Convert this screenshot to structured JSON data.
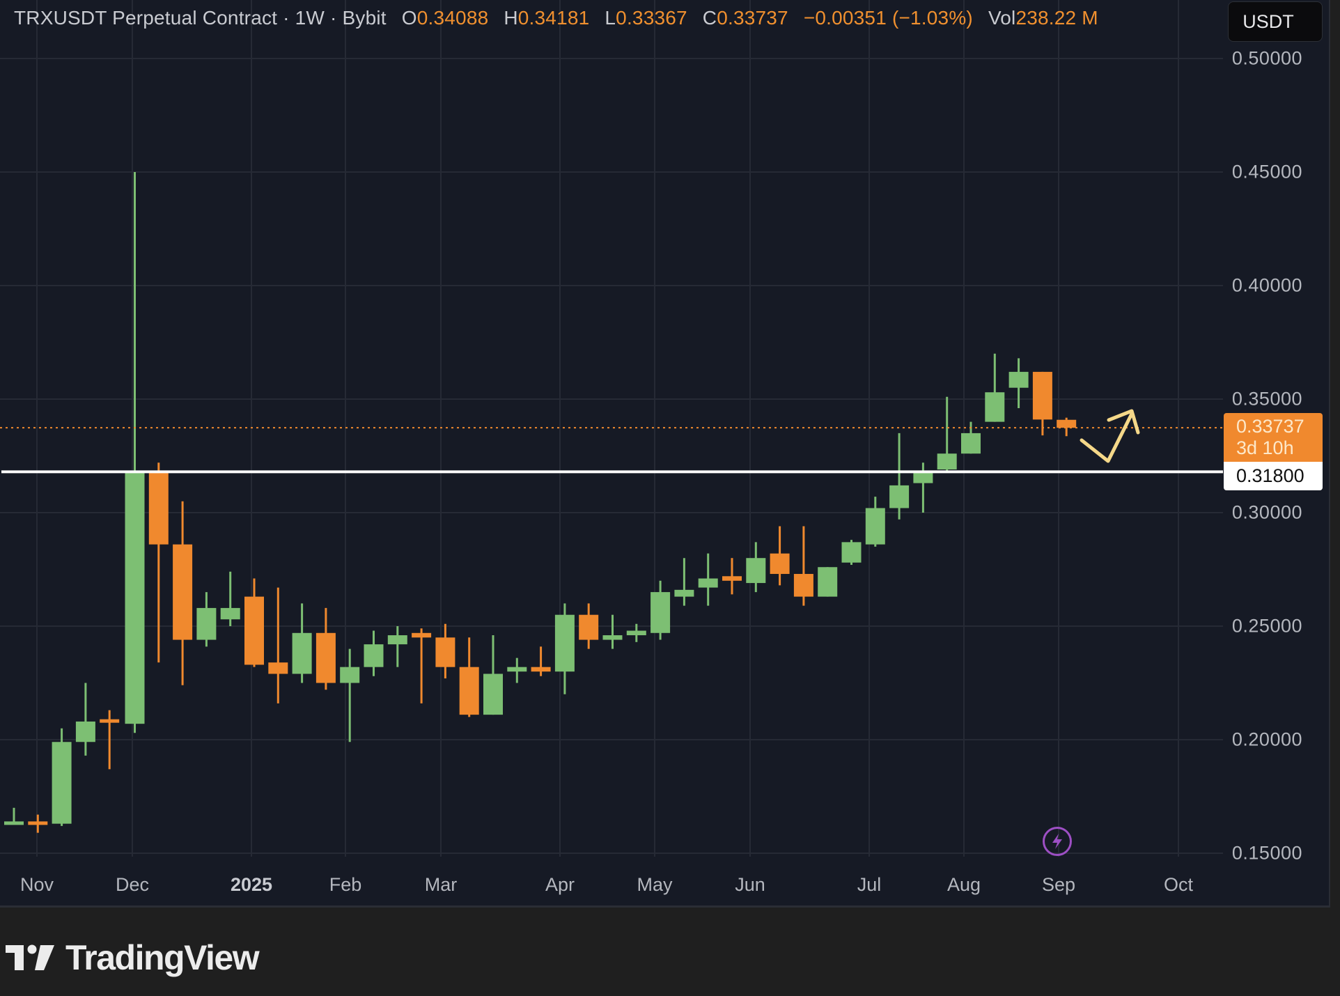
{
  "header": {
    "symbol": "TRXUSDT Perpetual Contract · 1W · Bybit",
    "open_label": "O",
    "open": "0.34088",
    "high_label": "H",
    "high": "0.34181",
    "low_label": "L",
    "low": "0.33367",
    "close_label": "C",
    "close": "0.33737",
    "change": "−0.00351 (−1.03%)",
    "vol_label": "Vol",
    "volume": "238.22 M"
  },
  "currency_button": "USDT",
  "price_axis": {
    "ticks": [
      "0.50000",
      "0.45000",
      "0.40000",
      "0.35000",
      "0.30000",
      "0.25000",
      "0.20000",
      "0.15000"
    ],
    "last_price": "0.33737",
    "countdown": "3d 10h",
    "level_price": "0.31800"
  },
  "time_axis": {
    "ticks": [
      "Nov",
      "Dec",
      "2025",
      "Feb",
      "Mar",
      "Apr",
      "May",
      "Jun",
      "Jul",
      "Aug",
      "Sep",
      "Oct"
    ]
  },
  "branding": "TradingView",
  "icons": {
    "flash": "lightning-bolt-icon",
    "logo": "tradingview-logo-icon"
  },
  "colors": {
    "up": "#7dbf73",
    "down": "#f0892e",
    "background": "#161a25",
    "grid": "#262a35",
    "level_line": "#ffffff",
    "arrow": "#f5d889"
  },
  "chart_data": {
    "type": "candlestick",
    "title": "TRXUSDT Perpetual Contract · 1W · Bybit",
    "xlabel": "",
    "ylabel": "USDT",
    "ylim": [
      0.15,
      0.5
    ],
    "grid": true,
    "x_tick_labels": [
      "Nov",
      "Dec",
      "2025",
      "Feb",
      "Mar",
      "Apr",
      "May",
      "Jun",
      "Jul",
      "Aug",
      "Sep",
      "Oct"
    ],
    "y_tick_labels": [
      "0.50000",
      "0.45000",
      "0.40000",
      "0.35000",
      "0.30000",
      "0.25000",
      "0.20000",
      "0.15000"
    ],
    "horizontal_line": {
      "value": 0.318,
      "label": "0.31800",
      "color": "#ffffff"
    },
    "last_price_line": {
      "value": 0.33737,
      "style": "dotted",
      "color": "#f0892e"
    },
    "annotation": "hand-drawn yellow check-mark arrow pointing up to the right of the last candle",
    "candles": [
      {
        "o": 0.163,
        "h": 0.17,
        "l": 0.163,
        "c": 0.164
      },
      {
        "o": 0.164,
        "h": 0.167,
        "l": 0.159,
        "c": 0.163
      },
      {
        "o": 0.163,
        "h": 0.205,
        "l": 0.162,
        "c": 0.199
      },
      {
        "o": 0.199,
        "h": 0.225,
        "l": 0.193,
        "c": 0.208
      },
      {
        "o": 0.209,
        "h": 0.213,
        "l": 0.187,
        "c": 0.208
      },
      {
        "o": 0.207,
        "h": 0.45,
        "l": 0.203,
        "c": 0.318
      },
      {
        "o": 0.318,
        "h": 0.322,
        "l": 0.234,
        "c": 0.286
      },
      {
        "o": 0.286,
        "h": 0.305,
        "l": 0.224,
        "c": 0.244
      },
      {
        "o": 0.244,
        "h": 0.265,
        "l": 0.241,
        "c": 0.258
      },
      {
        "o": 0.253,
        "h": 0.274,
        "l": 0.25,
        "c": 0.258
      },
      {
        "o": 0.263,
        "h": 0.271,
        "l": 0.232,
        "c": 0.233
      },
      {
        "o": 0.234,
        "h": 0.267,
        "l": 0.216,
        "c": 0.229
      },
      {
        "o": 0.229,
        "h": 0.26,
        "l": 0.225,
        "c": 0.247
      },
      {
        "o": 0.247,
        "h": 0.258,
        "l": 0.222,
        "c": 0.225
      },
      {
        "o": 0.225,
        "h": 0.24,
        "l": 0.199,
        "c": 0.232
      },
      {
        "o": 0.232,
        "h": 0.248,
        "l": 0.228,
        "c": 0.242
      },
      {
        "o": 0.242,
        "h": 0.25,
        "l": 0.232,
        "c": 0.246
      },
      {
        "o": 0.247,
        "h": 0.249,
        "l": 0.216,
        "c": 0.245
      },
      {
        "o": 0.245,
        "h": 0.251,
        "l": 0.227,
        "c": 0.232
      },
      {
        "o": 0.232,
        "h": 0.245,
        "l": 0.21,
        "c": 0.211
      },
      {
        "o": 0.211,
        "h": 0.246,
        "l": 0.211,
        "c": 0.229
      },
      {
        "o": 0.23,
        "h": 0.236,
        "l": 0.225,
        "c": 0.232
      },
      {
        "o": 0.232,
        "h": 0.241,
        "l": 0.228,
        "c": 0.23
      },
      {
        "o": 0.23,
        "h": 0.26,
        "l": 0.22,
        "c": 0.255
      },
      {
        "o": 0.255,
        "h": 0.26,
        "l": 0.24,
        "c": 0.244
      },
      {
        "o": 0.244,
        "h": 0.255,
        "l": 0.24,
        "c": 0.246
      },
      {
        "o": 0.246,
        "h": 0.251,
        "l": 0.243,
        "c": 0.248
      },
      {
        "o": 0.247,
        "h": 0.27,
        "l": 0.244,
        "c": 0.265
      },
      {
        "o": 0.263,
        "h": 0.28,
        "l": 0.259,
        "c": 0.266
      },
      {
        "o": 0.267,
        "h": 0.282,
        "l": 0.259,
        "c": 0.271
      },
      {
        "o": 0.272,
        "h": 0.28,
        "l": 0.264,
        "c": 0.27
      },
      {
        "o": 0.269,
        "h": 0.287,
        "l": 0.265,
        "c": 0.28
      },
      {
        "o": 0.282,
        "h": 0.294,
        "l": 0.268,
        "c": 0.273
      },
      {
        "o": 0.273,
        "h": 0.294,
        "l": 0.259,
        "c": 0.263
      },
      {
        "o": 0.263,
        "h": 0.276,
        "l": 0.263,
        "c": 0.276
      },
      {
        "o": 0.278,
        "h": 0.288,
        "l": 0.277,
        "c": 0.287
      },
      {
        "o": 0.286,
        "h": 0.307,
        "l": 0.285,
        "c": 0.302
      },
      {
        "o": 0.302,
        "h": 0.335,
        "l": 0.297,
        "c": 0.312
      },
      {
        "o": 0.313,
        "h": 0.322,
        "l": 0.3,
        "c": 0.318
      },
      {
        "o": 0.319,
        "h": 0.351,
        "l": 0.318,
        "c": 0.326
      },
      {
        "o": 0.326,
        "h": 0.34,
        "l": 0.326,
        "c": 0.335
      },
      {
        "o": 0.34,
        "h": 0.37,
        "l": 0.34,
        "c": 0.353
      },
      {
        "o": 0.355,
        "h": 0.368,
        "l": 0.346,
        "c": 0.362
      },
      {
        "o": 0.362,
        "h": 0.362,
        "l": 0.334,
        "c": 0.341
      },
      {
        "o": 0.34088,
        "h": 0.34181,
        "l": 0.33367,
        "c": 0.33737
      }
    ]
  }
}
